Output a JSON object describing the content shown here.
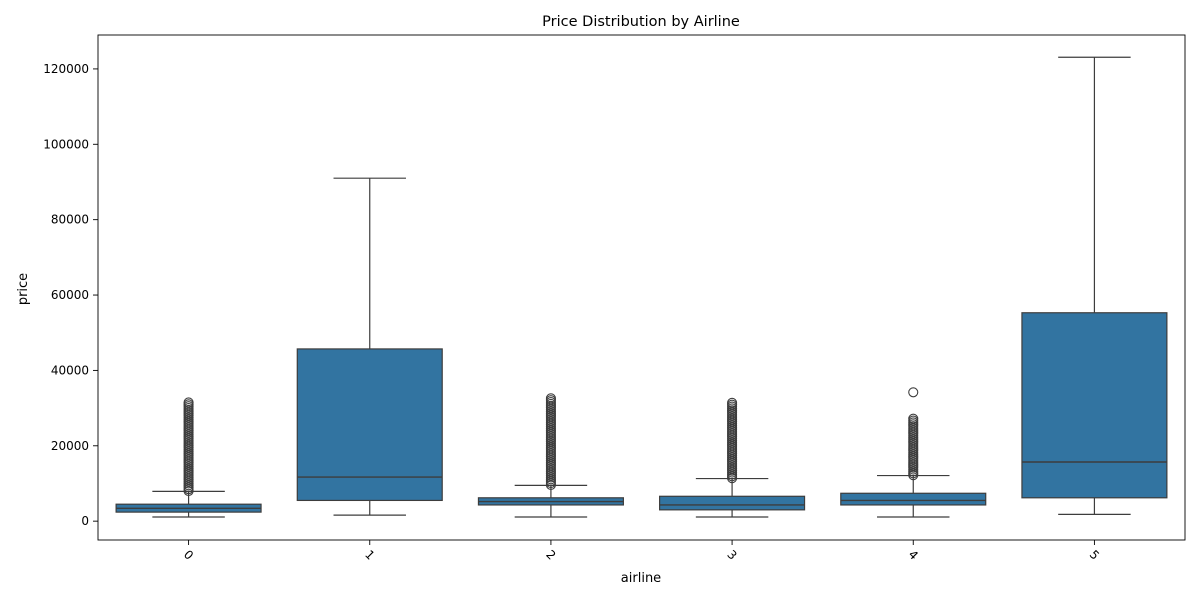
{
  "chart_data": {
    "type": "box",
    "title": "Price Distribution by Airline",
    "xlabel": "airline",
    "ylabel": "price",
    "ylim": [
      -5000,
      129000
    ],
    "yticks": [
      0,
      20000,
      40000,
      60000,
      80000,
      100000,
      120000
    ],
    "ytick_labels": [
      "0",
      "20000",
      "40000",
      "60000",
      "80000",
      "100000",
      "120000"
    ],
    "categories": [
      "0",
      "1",
      "2",
      "3",
      "4",
      "5"
    ],
    "color": "#3274a1",
    "edge_color": "#3d3d3d",
    "grid": false,
    "boxes": [
      {
        "category": "0",
        "whisker_low": 1100,
        "q1": 2400,
        "median": 3400,
        "q3": 4500,
        "whisker_high": 7900,
        "outliers_from": 8000,
        "outliers_to": 31800
      },
      {
        "category": "1",
        "whisker_low": 1600,
        "q1": 5500,
        "median": 11700,
        "q3": 45700,
        "whisker_high": 91000,
        "outliers_from": null,
        "outliers_to": null
      },
      {
        "category": "2",
        "whisker_low": 1100,
        "q1": 4300,
        "median": 5200,
        "q3": 6200,
        "whisker_high": 9500,
        "outliers_from": 9600,
        "outliers_to": 32800
      },
      {
        "category": "3",
        "whisker_low": 1100,
        "q1": 3000,
        "median": 4300,
        "q3": 6600,
        "whisker_high": 11300,
        "outliers_from": 11400,
        "outliers_to": 31600
      },
      {
        "category": "4",
        "whisker_low": 1100,
        "q1": 4300,
        "median": 5500,
        "q3": 7400,
        "whisker_high": 12100,
        "outliers_from": 12200,
        "outliers_to": 27600,
        "extra_outliers": [
          34200
        ]
      },
      {
        "category": "5",
        "whisker_low": 1800,
        "q1": 6200,
        "median": 15700,
        "q3": 55300,
        "whisker_high": 123100,
        "outliers_from": null,
        "outliers_to": null
      }
    ]
  }
}
